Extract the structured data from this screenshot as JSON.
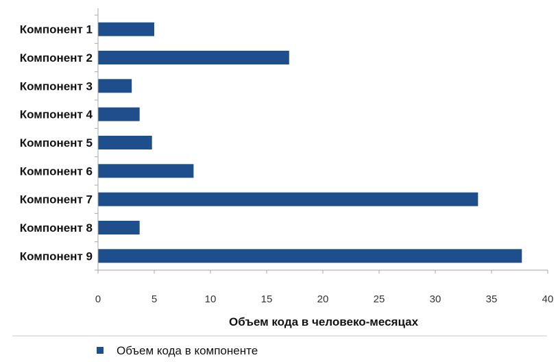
{
  "chart_data": {
    "type": "bar",
    "orientation": "horizontal",
    "categories": [
      "Компонент 1",
      "Компонент 2",
      "Компонент 3",
      "Компонент 4",
      "Компонент 5",
      "Компонент 6",
      "Компонент 7",
      "Компонент 8",
      "Компонент 9"
    ],
    "series": [
      {
        "name": "Объем кода в компоненте",
        "values": [
          5,
          17,
          3,
          3.7,
          4.8,
          8.5,
          33.8,
          3.7,
          37.7
        ]
      }
    ],
    "xlabel": "Объем кода в человеко-месяцах",
    "xlim": [
      0,
      40
    ],
    "xticks": [
      0,
      5,
      10,
      15,
      20,
      25,
      30,
      35,
      40
    ],
    "grid": false,
    "legend_position": "bottom",
    "bar_color": "#1f4e8c",
    "axis_color": "#a6a6a6"
  }
}
